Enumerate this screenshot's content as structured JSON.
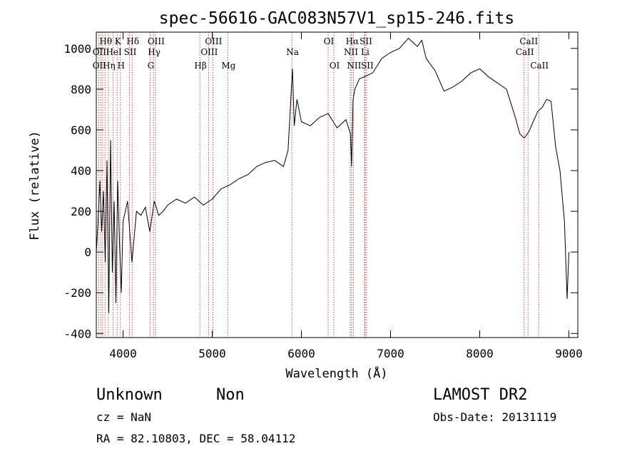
{
  "chart_data": {
    "type": "line",
    "title": "spec-56616-GAC083N57V1_sp15-246.fits",
    "xlabel": "Wavelength (Å)",
    "ylabel": "Flux (relative)",
    "xlim": [
      3700,
      9100
    ],
    "ylim": [
      -420,
      1080
    ],
    "xticks": [
      4000,
      5000,
      6000,
      7000,
      8000,
      9000
    ],
    "yticks": [
      -400,
      -200,
      0,
      200,
      400,
      600,
      800,
      1000
    ],
    "grid": false,
    "series": [
      {
        "x": [
          3700,
          3720,
          3740,
          3760,
          3780,
          3800,
          3820,
          3840,
          3860,
          3880,
          3900,
          3920,
          3940,
          3960,
          3980,
          4000,
          4050,
          4100,
          4150,
          4200,
          4250,
          4300,
          4350,
          4400,
          4450,
          4500,
          4600,
          4700,
          4800,
          4900,
          5000,
          5100,
          5200,
          5300,
          5400,
          5500,
          5600,
          5700,
          5800,
          5850,
          5880,
          5900,
          5920,
          5950,
          6000,
          6100,
          6200,
          6300,
          6400,
          6500,
          6550,
          6563,
          6580,
          6600,
          6650,
          6700,
          6800,
          6900,
          7000,
          7100,
          7200,
          7300,
          7350,
          7400,
          7500,
          7600,
          7700,
          7800,
          7900,
          8000,
          8100,
          8200,
          8300,
          8400,
          8450,
          8500,
          8550,
          8600,
          8650,
          8700,
          8750,
          8800,
          8850,
          8900,
          8950,
          8980,
          9000
        ],
        "y": [
          0,
          150,
          350,
          100,
          300,
          -50,
          450,
          -300,
          550,
          -100,
          250,
          -250,
          350,
          50,
          -200,
          150,
          250,
          -50,
          200,
          180,
          220,
          100,
          250,
          180,
          200,
          230,
          260,
          240,
          270,
          230,
          260,
          310,
          330,
          360,
          380,
          420,
          440,
          450,
          420,
          500,
          740,
          900,
          620,
          750,
          640,
          620,
          660,
          680,
          610,
          650,
          580,
          420,
          750,
          800,
          850,
          860,
          880,
          950,
          980,
          1000,
          1050,
          1010,
          1040,
          950,
          890,
          790,
          810,
          840,
          880,
          900,
          860,
          830,
          800,
          660,
          580,
          560,
          590,
          640,
          690,
          710,
          750,
          740,
          520,
          400,
          150,
          -230,
          0
        ]
      }
    ],
    "lines": [
      {
        "wavelength": 3727,
        "labels": [
          "OII"
        ]
      },
      {
        "wavelength": 3750,
        "labels": [
          "OII"
        ]
      },
      {
        "wavelength": 3771,
        "labels": [
          "Hη"
        ]
      },
      {
        "wavelength": 3798,
        "labels": [
          "Hθ"
        ]
      },
      {
        "wavelength": 3835,
        "labels": [
          "Hη"
        ]
      },
      {
        "wavelength": 3889,
        "labels": [
          "HeI"
        ]
      },
      {
        "wavelength": 3934,
        "labels": [
          "K"
        ]
      },
      {
        "wavelength": 3970,
        "labels": [
          "H"
        ]
      },
      {
        "wavelength": 4072,
        "labels": [
          "SII"
        ]
      },
      {
        "wavelength": 4102,
        "labels": [
          "Hδ"
        ]
      },
      {
        "wavelength": 4304,
        "labels": [
          "G"
        ]
      },
      {
        "wavelength": 4341,
        "labels": [
          "Hγ"
        ]
      },
      {
        "wavelength": 4363,
        "labels": [
          "OIII"
        ]
      },
      {
        "wavelength": 4861,
        "labels": [
          "Hβ"
        ]
      },
      {
        "wavelength": 4959,
        "labels": [
          "OIII"
        ]
      },
      {
        "wavelength": 5007,
        "labels": [
          "OIII"
        ]
      },
      {
        "wavelength": 5175,
        "labels": [
          "Mg"
        ]
      },
      {
        "wavelength": 5893,
        "labels": [
          "Na"
        ]
      },
      {
        "wavelength": 6300,
        "labels": [
          "OI"
        ]
      },
      {
        "wavelength": 6364,
        "labels": [
          "OI"
        ]
      },
      {
        "wavelength": 6548,
        "labels": [
          "NII"
        ]
      },
      {
        "wavelength": 6563,
        "labels": [
          "Hα"
        ]
      },
      {
        "wavelength": 6583,
        "labels": [
          "NII"
        ]
      },
      {
        "wavelength": 6707,
        "labels": [
          "Li"
        ]
      },
      {
        "wavelength": 6716,
        "labels": [
          "SII"
        ]
      },
      {
        "wavelength": 6731,
        "labels": [
          "SII"
        ]
      },
      {
        "wavelength": 8498,
        "labels": [
          "CaII"
        ]
      },
      {
        "wavelength": 8542,
        "labels": [
          "CaII"
        ]
      },
      {
        "wavelength": 8662,
        "labels": [
          "CaII"
        ]
      }
    ],
    "line_labels": [
      {
        "text": "Hθ",
        "x": 3798
      },
      {
        "text": "K",
        "x": 3934
      },
      {
        "text": "Hδ",
        "x": 4102
      },
      {
        "text": "OIII",
        "x": 4363
      },
      {
        "text": "OIII",
        "x": 5007
      },
      {
        "text": "OI",
        "x": 6300
      },
      {
        "text": "Hα",
        "x": 6563
      },
      {
        "text": "SII",
        "x": 6716
      },
      {
        "text": "CaII",
        "x": 8542
      },
      {
        "text": "OII",
        "x": 3727
      },
      {
        "text": "HeI",
        "x": 3889
      },
      {
        "text": "SII",
        "x": 4072
      },
      {
        "text": "Hγ",
        "x": 4341
      },
      {
        "text": "OIII",
        "x": 4959
      },
      {
        "text": "Na",
        "x": 5893
      },
      {
        "text": "NII",
        "x": 6548
      },
      {
        "text": "Li",
        "x": 6707
      },
      {
        "text": "CaII",
        "x": 8498
      },
      {
        "text": "OII",
        "x": 3727
      },
      {
        "text": "Hη",
        "x": 3835
      },
      {
        "text": "H",
        "x": 3970
      },
      {
        "text": "G",
        "x": 4304
      },
      {
        "text": "Hβ",
        "x": 4861
      },
      {
        "text": "Mg",
        "x": 5175
      },
      {
        "text": "OI",
        "x": 6364
      },
      {
        "text": "NII",
        "x": 6583
      },
      {
        "text": "SII",
        "x": 6731
      },
      {
        "text": "CaII",
        "x": 8662
      }
    ]
  },
  "info": {
    "classification": "Unknown",
    "subclass": "Non",
    "survey": "LAMOST DR2",
    "cz": "cz = NaN",
    "obs_date": "Obs-Date: 20131119",
    "coords": "RA =  82.10803, DEC =  58.04112"
  },
  "colors": {
    "spectrum": "#000000",
    "line_marker": "#b22222",
    "background": "#ffffff"
  }
}
